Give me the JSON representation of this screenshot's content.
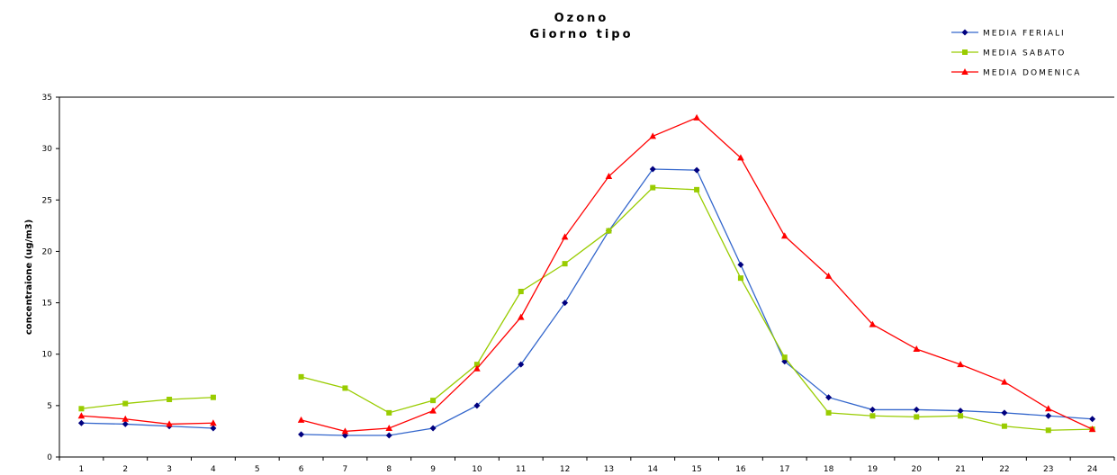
{
  "chart_data": {
    "type": "line",
    "title": "Ozono",
    "subtitle": "Giorno tipo",
    "xlabel": "",
    "ylabel": "concentraione (ug/m3)",
    "x": [
      1,
      2,
      3,
      4,
      5,
      6,
      7,
      8,
      9,
      10,
      11,
      12,
      13,
      14,
      15,
      16,
      17,
      18,
      19,
      20,
      21,
      22,
      23,
      24
    ],
    "x_tick_labels": [
      "1",
      "2",
      "3",
      "4",
      "5",
      "6",
      "7",
      "8",
      "9",
      "10",
      "11",
      "12",
      "13",
      "14",
      "15",
      "16",
      "17",
      "18",
      "19",
      "20",
      "21",
      "22",
      "23",
      "24"
    ],
    "ylim": [
      0,
      35
    ],
    "y_ticks": [
      0,
      5,
      10,
      15,
      20,
      25,
      30,
      35
    ],
    "y_tick_labels": [
      "0",
      "5",
      "10",
      "15",
      "20",
      "25",
      "30",
      "35"
    ],
    "grid": false,
    "legend_position": "top-right",
    "series": [
      {
        "name": "MEDIA FERIALI",
        "color": "#00007f",
        "line_color": "#3366cc",
        "marker": "diamond",
        "values": [
          3.3,
          3.2,
          3.0,
          2.8,
          null,
          2.2,
          2.1,
          2.1,
          2.8,
          5.0,
          9.0,
          15.0,
          22.0,
          28.0,
          27.9,
          18.7,
          9.3,
          5.8,
          4.6,
          4.6,
          4.5,
          4.3,
          4.0,
          3.7
        ]
      },
      {
        "name": "MEDIA SABATO",
        "color": "#99cc00",
        "line_color": "#99cc00",
        "marker": "square",
        "values": [
          4.7,
          5.2,
          5.6,
          5.8,
          null,
          7.8,
          6.7,
          4.3,
          5.5,
          9.0,
          16.1,
          18.8,
          22.0,
          26.2,
          26.0,
          17.4,
          9.7,
          4.3,
          4.0,
          3.9,
          4.0,
          3.0,
          2.6,
          2.7
        ]
      },
      {
        "name": "MEDIA DOMENICA",
        "color": "#ff0000",
        "line_color": "#ff0000",
        "marker": "triangle",
        "values": [
          4.0,
          3.7,
          3.2,
          3.3,
          null,
          3.6,
          2.5,
          2.8,
          4.5,
          8.6,
          13.6,
          21.4,
          27.3,
          31.2,
          33.0,
          29.1,
          21.5,
          17.6,
          12.9,
          10.5,
          9.0,
          7.3,
          4.7,
          2.7
        ]
      }
    ]
  }
}
